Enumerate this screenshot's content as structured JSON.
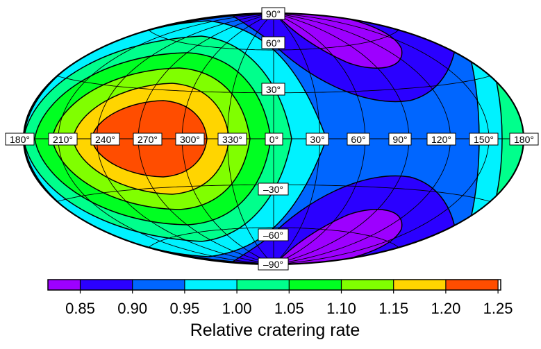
{
  "map": {
    "projection": "Hammer",
    "colors": {
      "c0": "#9d00ff",
      "c1": "#2b00ff",
      "c2": "#0066ff",
      "c3": "#00f2ff",
      "c4": "#00ff8c",
      "c5": "#00ff22",
      "c6": "#80ff00",
      "c7": "#ffd500",
      "c8": "#ff4d00"
    },
    "longitude_labels": [
      "180°",
      "210°",
      "240°",
      "270°",
      "300°",
      "330°",
      "0°",
      "30°",
      "60°",
      "90°",
      "120°",
      "150°",
      "180°"
    ],
    "latitude_labels": [
      "90°",
      "60°",
      "30°",
      "–30°",
      "–60°",
      "–90°"
    ]
  },
  "colorbar": {
    "ticks": [
      "0.85",
      "0.90",
      "0.95",
      "1.00",
      "1.05",
      "1.10",
      "1.15",
      "1.20",
      "1.25"
    ],
    "colors": [
      "#9d00ff",
      "#2b00ff",
      "#0066ff",
      "#00f2ff",
      "#00ff8c",
      "#00ff22",
      "#80ff00",
      "#ffd500",
      "#ff4d00"
    ],
    "title": "Relative cratering rate"
  }
}
